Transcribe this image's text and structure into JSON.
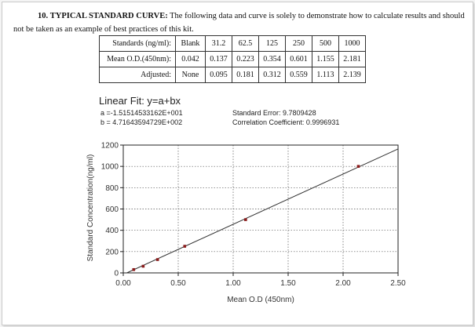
{
  "section": {
    "number": "10.",
    "title": "TYPICAL STANDARD CURVE:",
    "text": "The following data and curve is solely to demonstrate how to calculate results and should not be taken as an example of best practices of this kit."
  },
  "table": {
    "rows": [
      {
        "header": "Standards (ng/ml):",
        "cells": [
          "Blank",
          "31.2",
          "62.5",
          "125",
          "250",
          "500",
          "1000"
        ]
      },
      {
        "header": "Mean O.D.(450nm):",
        "cells": [
          "0.042",
          "0.137",
          "0.223",
          "0.354",
          "0.601",
          "1.155",
          "2.181"
        ]
      },
      {
        "header": "Adjusted:",
        "cells": [
          "None",
          "0.095",
          "0.181",
          "0.312",
          "0.559",
          "1.113",
          "2.139"
        ]
      }
    ]
  },
  "fit": {
    "title": "Linear Fit: y=a+bx",
    "a": "a =-1.51514533162E+001",
    "b": "b = 4.71643594729E+002",
    "std_error": "Standard Error: 9.7809428",
    "corr": "Correlation Coefficient: 0.9996931"
  },
  "chart_data": {
    "type": "scatter",
    "xlabel": "Mean O.D (450nm)",
    "ylabel": "Standard Concentration(ng/ml)",
    "xlim": [
      0.0,
      2.5
    ],
    "ylim": [
      0,
      1200
    ],
    "x_ticks": [
      "0.00",
      "0.50",
      "1.00",
      "1.50",
      "2.00",
      "2.50"
    ],
    "y_ticks": [
      "0",
      "200",
      "400",
      "600",
      "800",
      "1000",
      "1200"
    ],
    "grid": true,
    "series": [
      {
        "points": [
          {
            "x": 0.095,
            "y": 31.2
          },
          {
            "x": 0.181,
            "y": 62.5
          },
          {
            "x": 0.312,
            "y": 125
          },
          {
            "x": 0.559,
            "y": 250
          },
          {
            "x": 1.113,
            "y": 500
          },
          {
            "x": 2.139,
            "y": 1000
          }
        ]
      }
    ],
    "fit": {
      "a": -15.1514533162,
      "b": 471.643594729
    }
  }
}
